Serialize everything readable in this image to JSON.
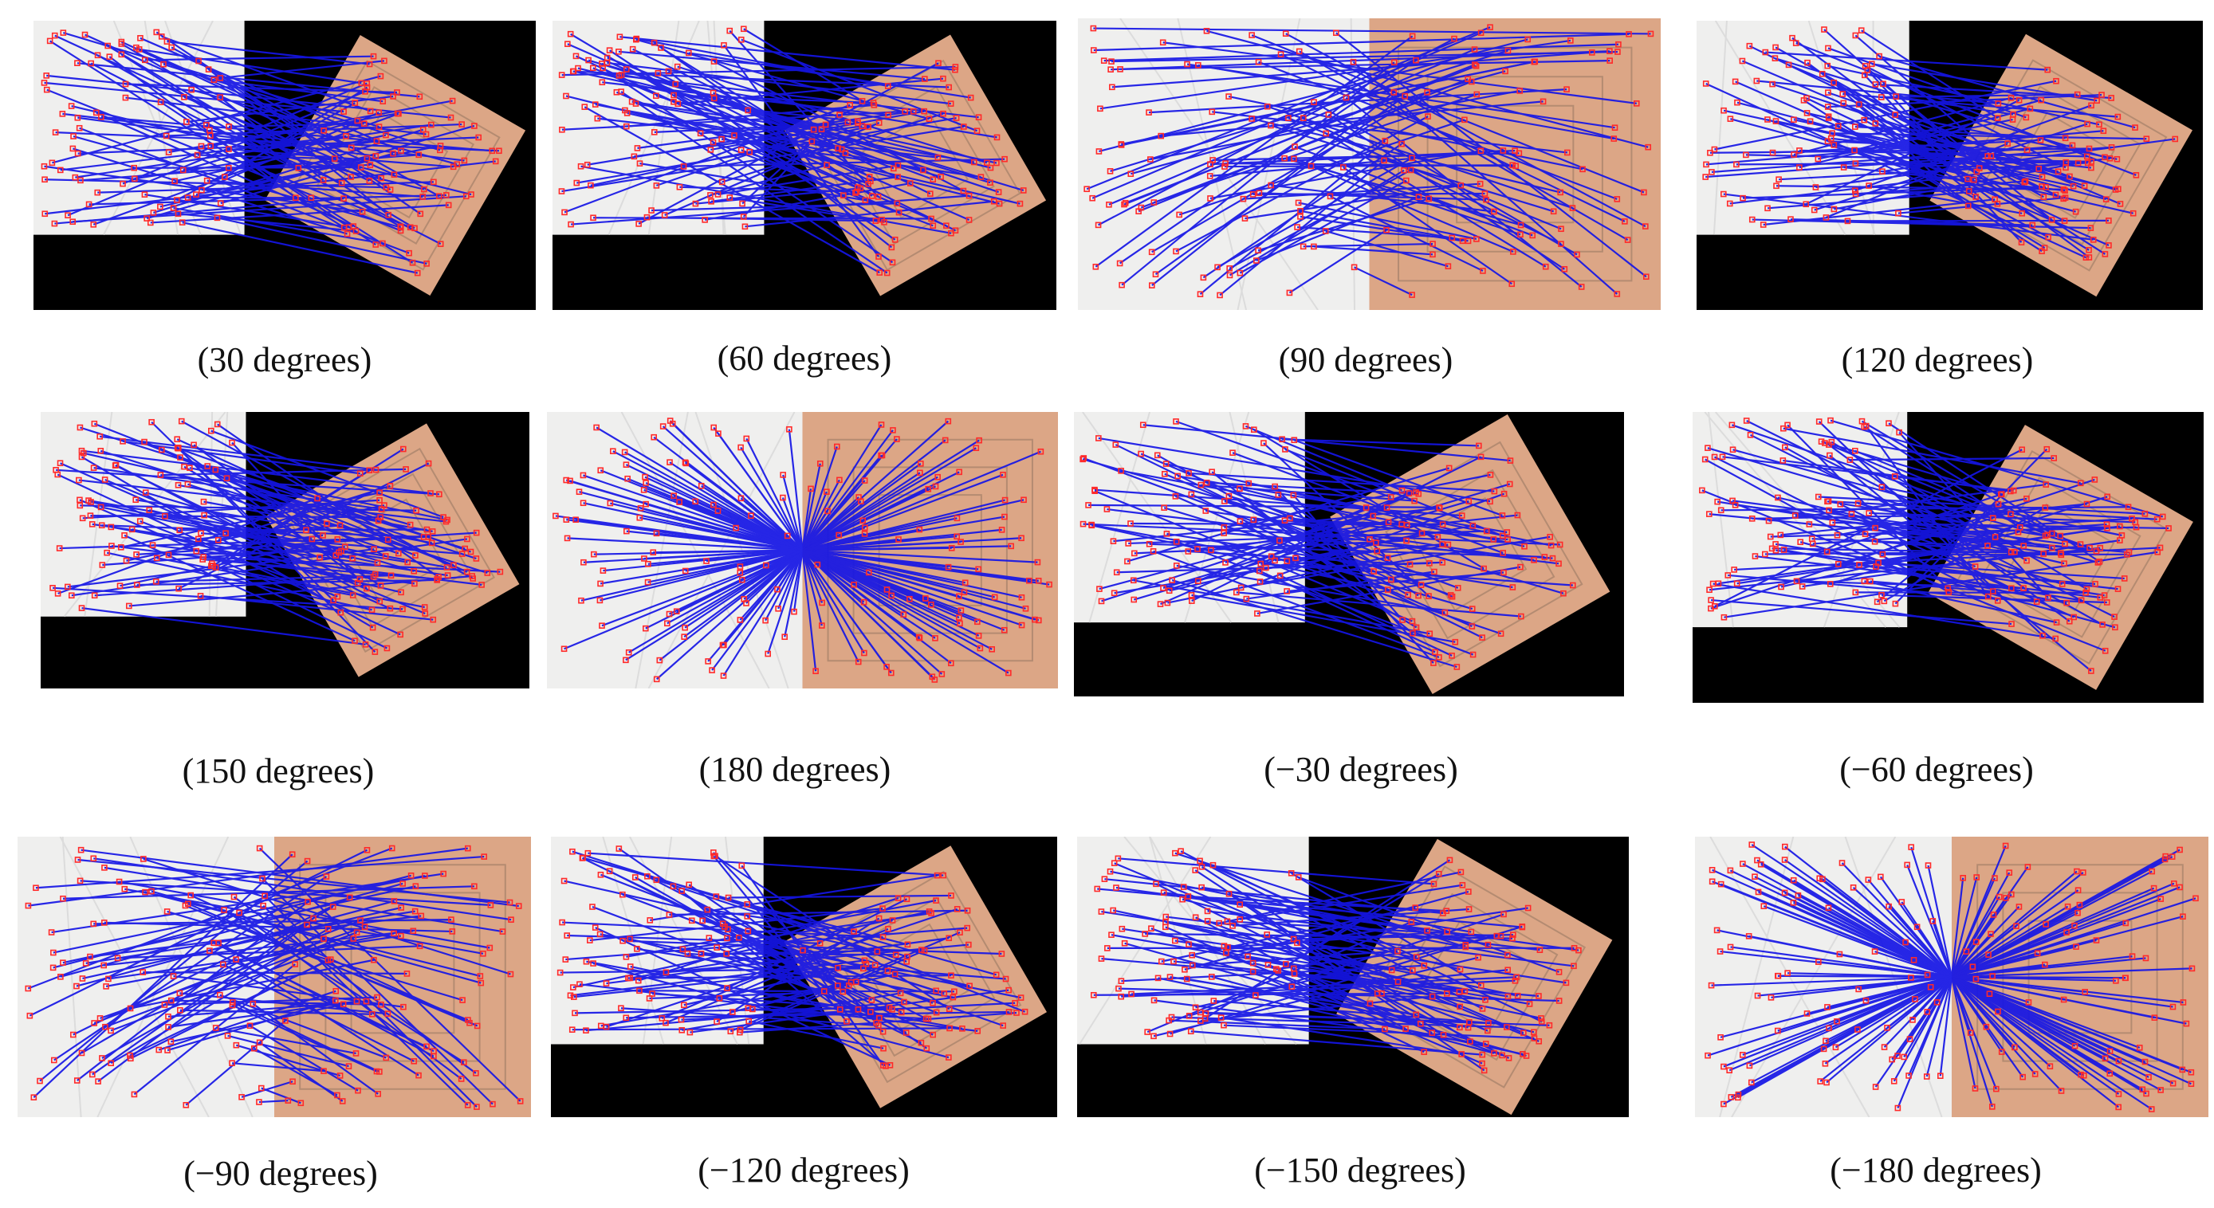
{
  "figure": {
    "panels": [
      {
        "caption": "(30 degrees)",
        "rotation_deg": 30
      },
      {
        "caption": "(60 degrees)",
        "rotation_deg": 60
      },
      {
        "caption": "(90 degrees)",
        "rotation_deg": 90
      },
      {
        "caption": "(120 degrees)",
        "rotation_deg": 120
      },
      {
        "caption": "(150 degrees)",
        "rotation_deg": 150
      },
      {
        "caption": "(180 degrees)",
        "rotation_deg": 180
      },
      {
        "caption": "(−30 degrees)",
        "rotation_deg": -30
      },
      {
        "caption": "(−60 degrees)",
        "rotation_deg": -60
      },
      {
        "caption": "(−90 degrees)",
        "rotation_deg": -90
      },
      {
        "caption": "(−120 degrees)",
        "rotation_deg": -120
      },
      {
        "caption": "(−150 degrees)",
        "rotation_deg": -150
      },
      {
        "caption": "(−180 degrees)",
        "rotation_deg": -180
      }
    ],
    "colors": {
      "match_line": "#1515e6",
      "keypoint_marker": "#ff2a2a",
      "map_background": "#efefee",
      "satellite_sand": "#dca686",
      "padding": "#000000",
      "caption_text": "#111111"
    }
  }
}
